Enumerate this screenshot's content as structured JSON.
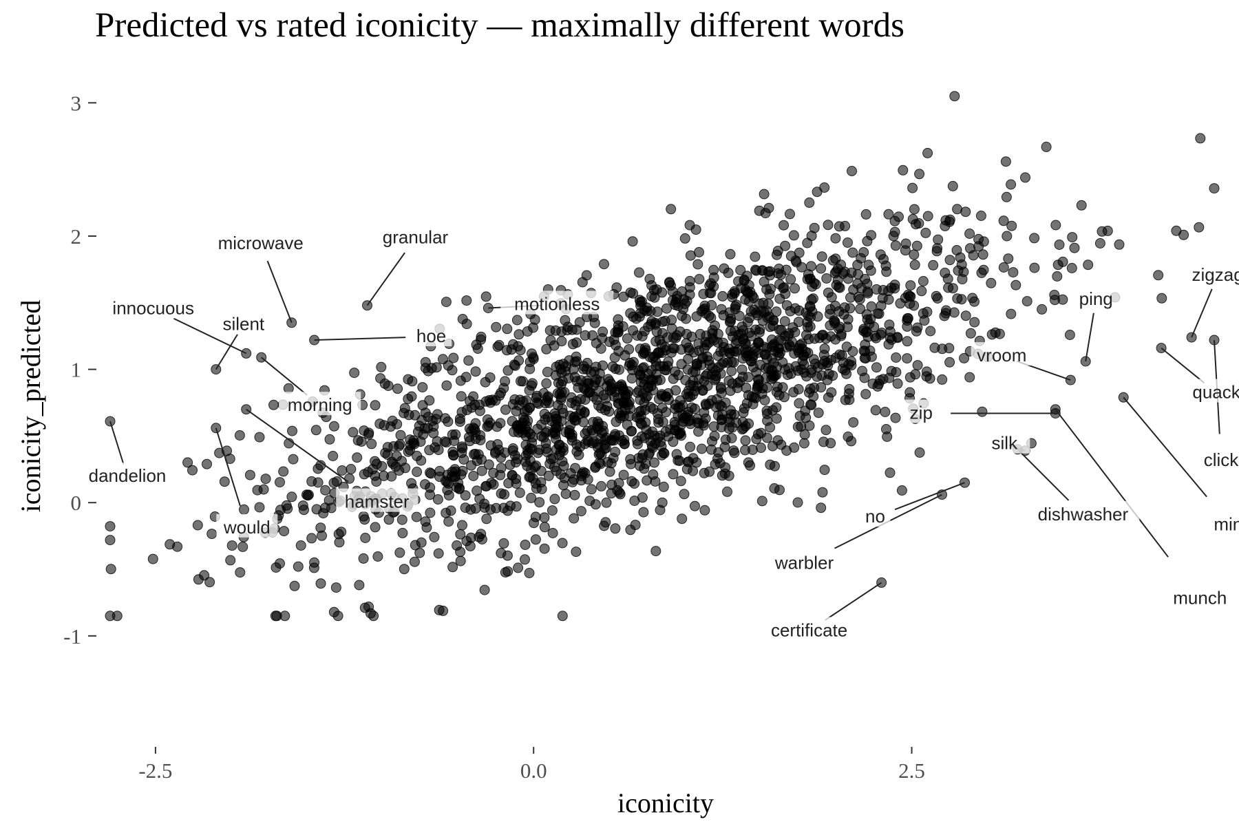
{
  "chart_data": {
    "type": "scatter",
    "title": "Predicted vs rated iconicity — maximally different words",
    "xlabel": "iconicity",
    "ylabel": "iconicity_predicted",
    "xlim": [
      -2.9,
      4.55
    ],
    "ylim": [
      -1.6,
      3.1
    ],
    "x_ticks": [
      -2.5,
      0.0,
      2.5
    ],
    "x_tick_labels": [
      "-2.5",
      "0.0",
      "2.5"
    ],
    "y_ticks": [
      -1,
      0,
      1,
      2,
      3
    ],
    "y_tick_labels": [
      "-1",
      "0",
      "1",
      "2",
      "3"
    ],
    "grid": false,
    "point_color": "#000000",
    "point_opacity": 0.55,
    "background_points": 1900,
    "background_mean_x": 0.8,
    "background_sd_x": 1.2,
    "background_slope": 0.35,
    "labeled_points": [
      {
        "label": "dandelion",
        "x": -2.8,
        "y": 0.61
      },
      {
        "label": "silent",
        "x": -2.1,
        "y": 1.0
      },
      {
        "label": "would",
        "x": -2.1,
        "y": 0.56
      },
      {
        "label": "innocuous",
        "x": -1.9,
        "y": 1.12
      },
      {
        "label": "morning",
        "x": -1.8,
        "y": 1.09
      },
      {
        "label": "hamster",
        "x": -1.9,
        "y": 0.7
      },
      {
        "label": "microwave",
        "x": -1.6,
        "y": 1.35
      },
      {
        "label": "hoe",
        "x": -1.45,
        "y": 1.22
      },
      {
        "label": "granular",
        "x": -1.1,
        "y": 1.48
      },
      {
        "label": "motionless",
        "x": -0.3,
        "y": 1.46
      },
      {
        "label": "certificate",
        "x": 2.3,
        "y": -0.6
      },
      {
        "label": "warbler",
        "x": 2.7,
        "y": 0.06
      },
      {
        "label": "no",
        "x": 2.85,
        "y": 0.15
      },
      {
        "label": "zip",
        "x": 3.45,
        "y": 0.67
      },
      {
        "label": "munch",
        "x": 3.45,
        "y": 0.7
      },
      {
        "label": "silk",
        "x": 3.25,
        "y": 0.39
      },
      {
        "label": "dishwasher",
        "x": 3.2,
        "y": 0.4
      },
      {
        "label": "vroom",
        "x": 3.55,
        "y": 0.92
      },
      {
        "label": "ping",
        "x": 3.65,
        "y": 1.06
      },
      {
        "label": "mini",
        "x": 3.9,
        "y": 0.79
      },
      {
        "label": "quack",
        "x": 4.15,
        "y": 1.16
      },
      {
        "label": "zigzag",
        "x": 4.35,
        "y": 1.24
      },
      {
        "label": "click",
        "x": 4.5,
        "y": 1.22
      }
    ]
  }
}
